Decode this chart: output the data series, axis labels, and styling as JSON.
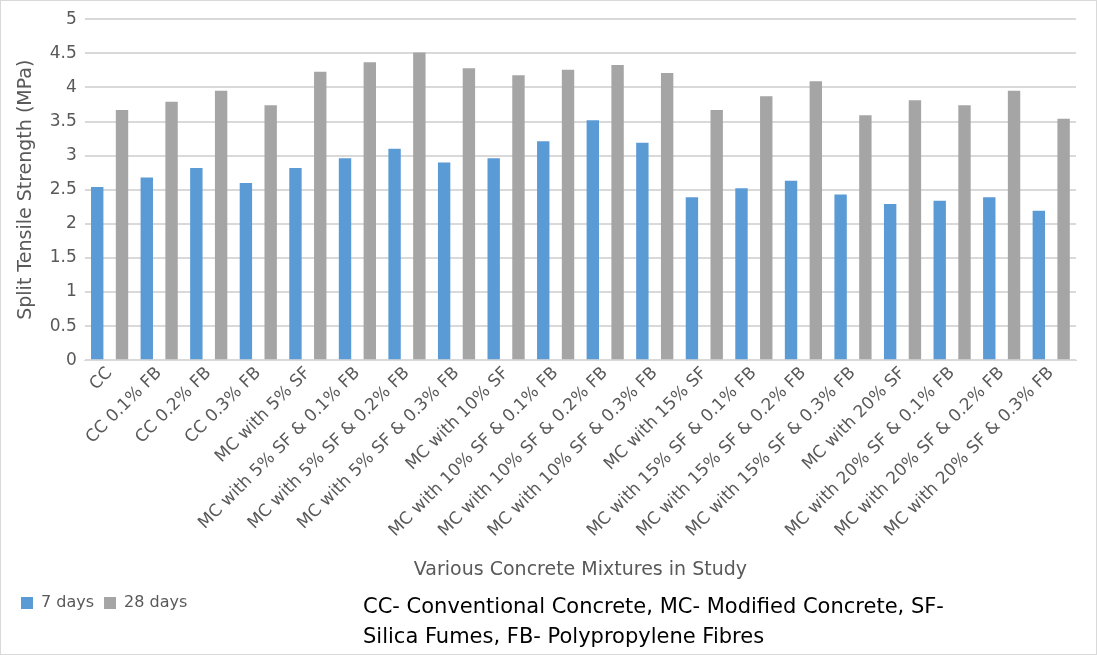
{
  "chart_data": {
    "type": "bar",
    "xlabel": "Various Concrete Mixtures in Study",
    "ylabel": "Split Tensile Strength (MPa)",
    "categories": [
      "CC",
      "CC 0.1% FB",
      "CC 0.2% FB",
      "CC 0.3% FB",
      "MC with 5% SF",
      "MC with 5% SF & 0.1% FB",
      "MC with 5% SF & 0.2% FB",
      "MC with 5% SF & 0.3% FB",
      "MC with 10% SF",
      "MC with 10% SF & 0.1% FB",
      "MC with 10% SF & 0.2% FB",
      "MC with 10% SF & 0.3% FB",
      "MC with 15% SF",
      "MC with 15% SF & 0.1% FB",
      "MC with 15% SF & 0.2% FB",
      "MC with 15% SF & 0.3% FB",
      "MC with 20% SF",
      "MC with 20% SF & 0.1% FB",
      "MC with 20% SF & 0.2% FB",
      "MC with 20% SF & 0.3% FB"
    ],
    "series": [
      {
        "name": "7 days",
        "color": "#5b9bd5",
        "values": [
          2.54,
          2.68,
          2.82,
          2.6,
          2.82,
          2.96,
          3.1,
          2.9,
          2.96,
          3.21,
          3.52,
          3.19,
          2.39,
          2.52,
          2.63,
          2.43,
          2.29,
          2.34,
          2.39,
          2.19
        ]
      },
      {
        "name": "28 days",
        "color": "#a5a5a5",
        "values": [
          3.67,
          3.79,
          3.95,
          3.74,
          4.23,
          4.37,
          4.51,
          4.28,
          4.18,
          4.26,
          4.33,
          4.21,
          3.67,
          3.87,
          4.09,
          3.59,
          3.81,
          3.74,
          3.95,
          3.54
        ]
      }
    ],
    "ylim": [
      0,
      5
    ],
    "yticks": [
      0,
      0.5,
      1,
      1.5,
      2,
      2.5,
      3,
      3.5,
      4,
      4.5,
      5
    ],
    "grid": "y",
    "legend": "bottom left",
    "annotations": [
      "CC- Conventional Concrete, MC- Modified Concrete, SF- Silica Fumes, FB- Polypropylene Fibres"
    ]
  }
}
